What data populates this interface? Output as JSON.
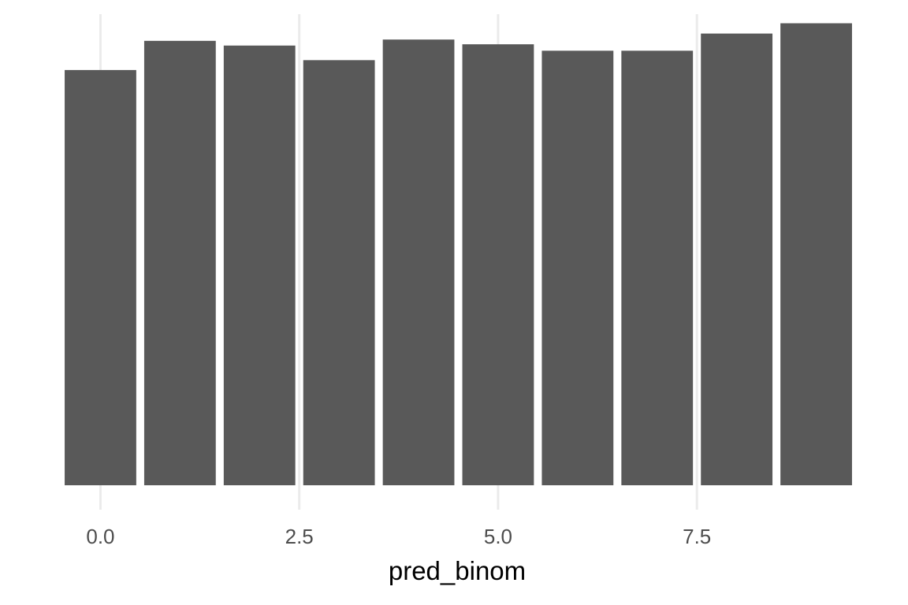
{
  "chart_data": {
    "type": "bar",
    "x": [
      0,
      1,
      2,
      3,
      4,
      5,
      6,
      7,
      8,
      9
    ],
    "values": [
      9680,
      10360,
      10250,
      9910,
      10390,
      10280,
      10130,
      10130,
      10530,
      10770
    ],
    "xlabel": "pred_binom",
    "ylabel": "",
    "title": "",
    "xlim": [
      -0.5,
      9.5
    ],
    "ylim": [
      0,
      11000
    ],
    "x_ticks": [
      0,
      2.5,
      5,
      7.5
    ],
    "x_tick_labels": [
      "0.0",
      "2.5",
      "5.0",
      "7.5"
    ],
    "y_axis_shown": false,
    "grid": "vertical-major",
    "legend": "none",
    "colors": {
      "bar": "#595959",
      "grid": "#ebebeb",
      "background": "#ffffff",
      "tick_text": "#4d4d4d",
      "axis_title": "#000000"
    }
  }
}
